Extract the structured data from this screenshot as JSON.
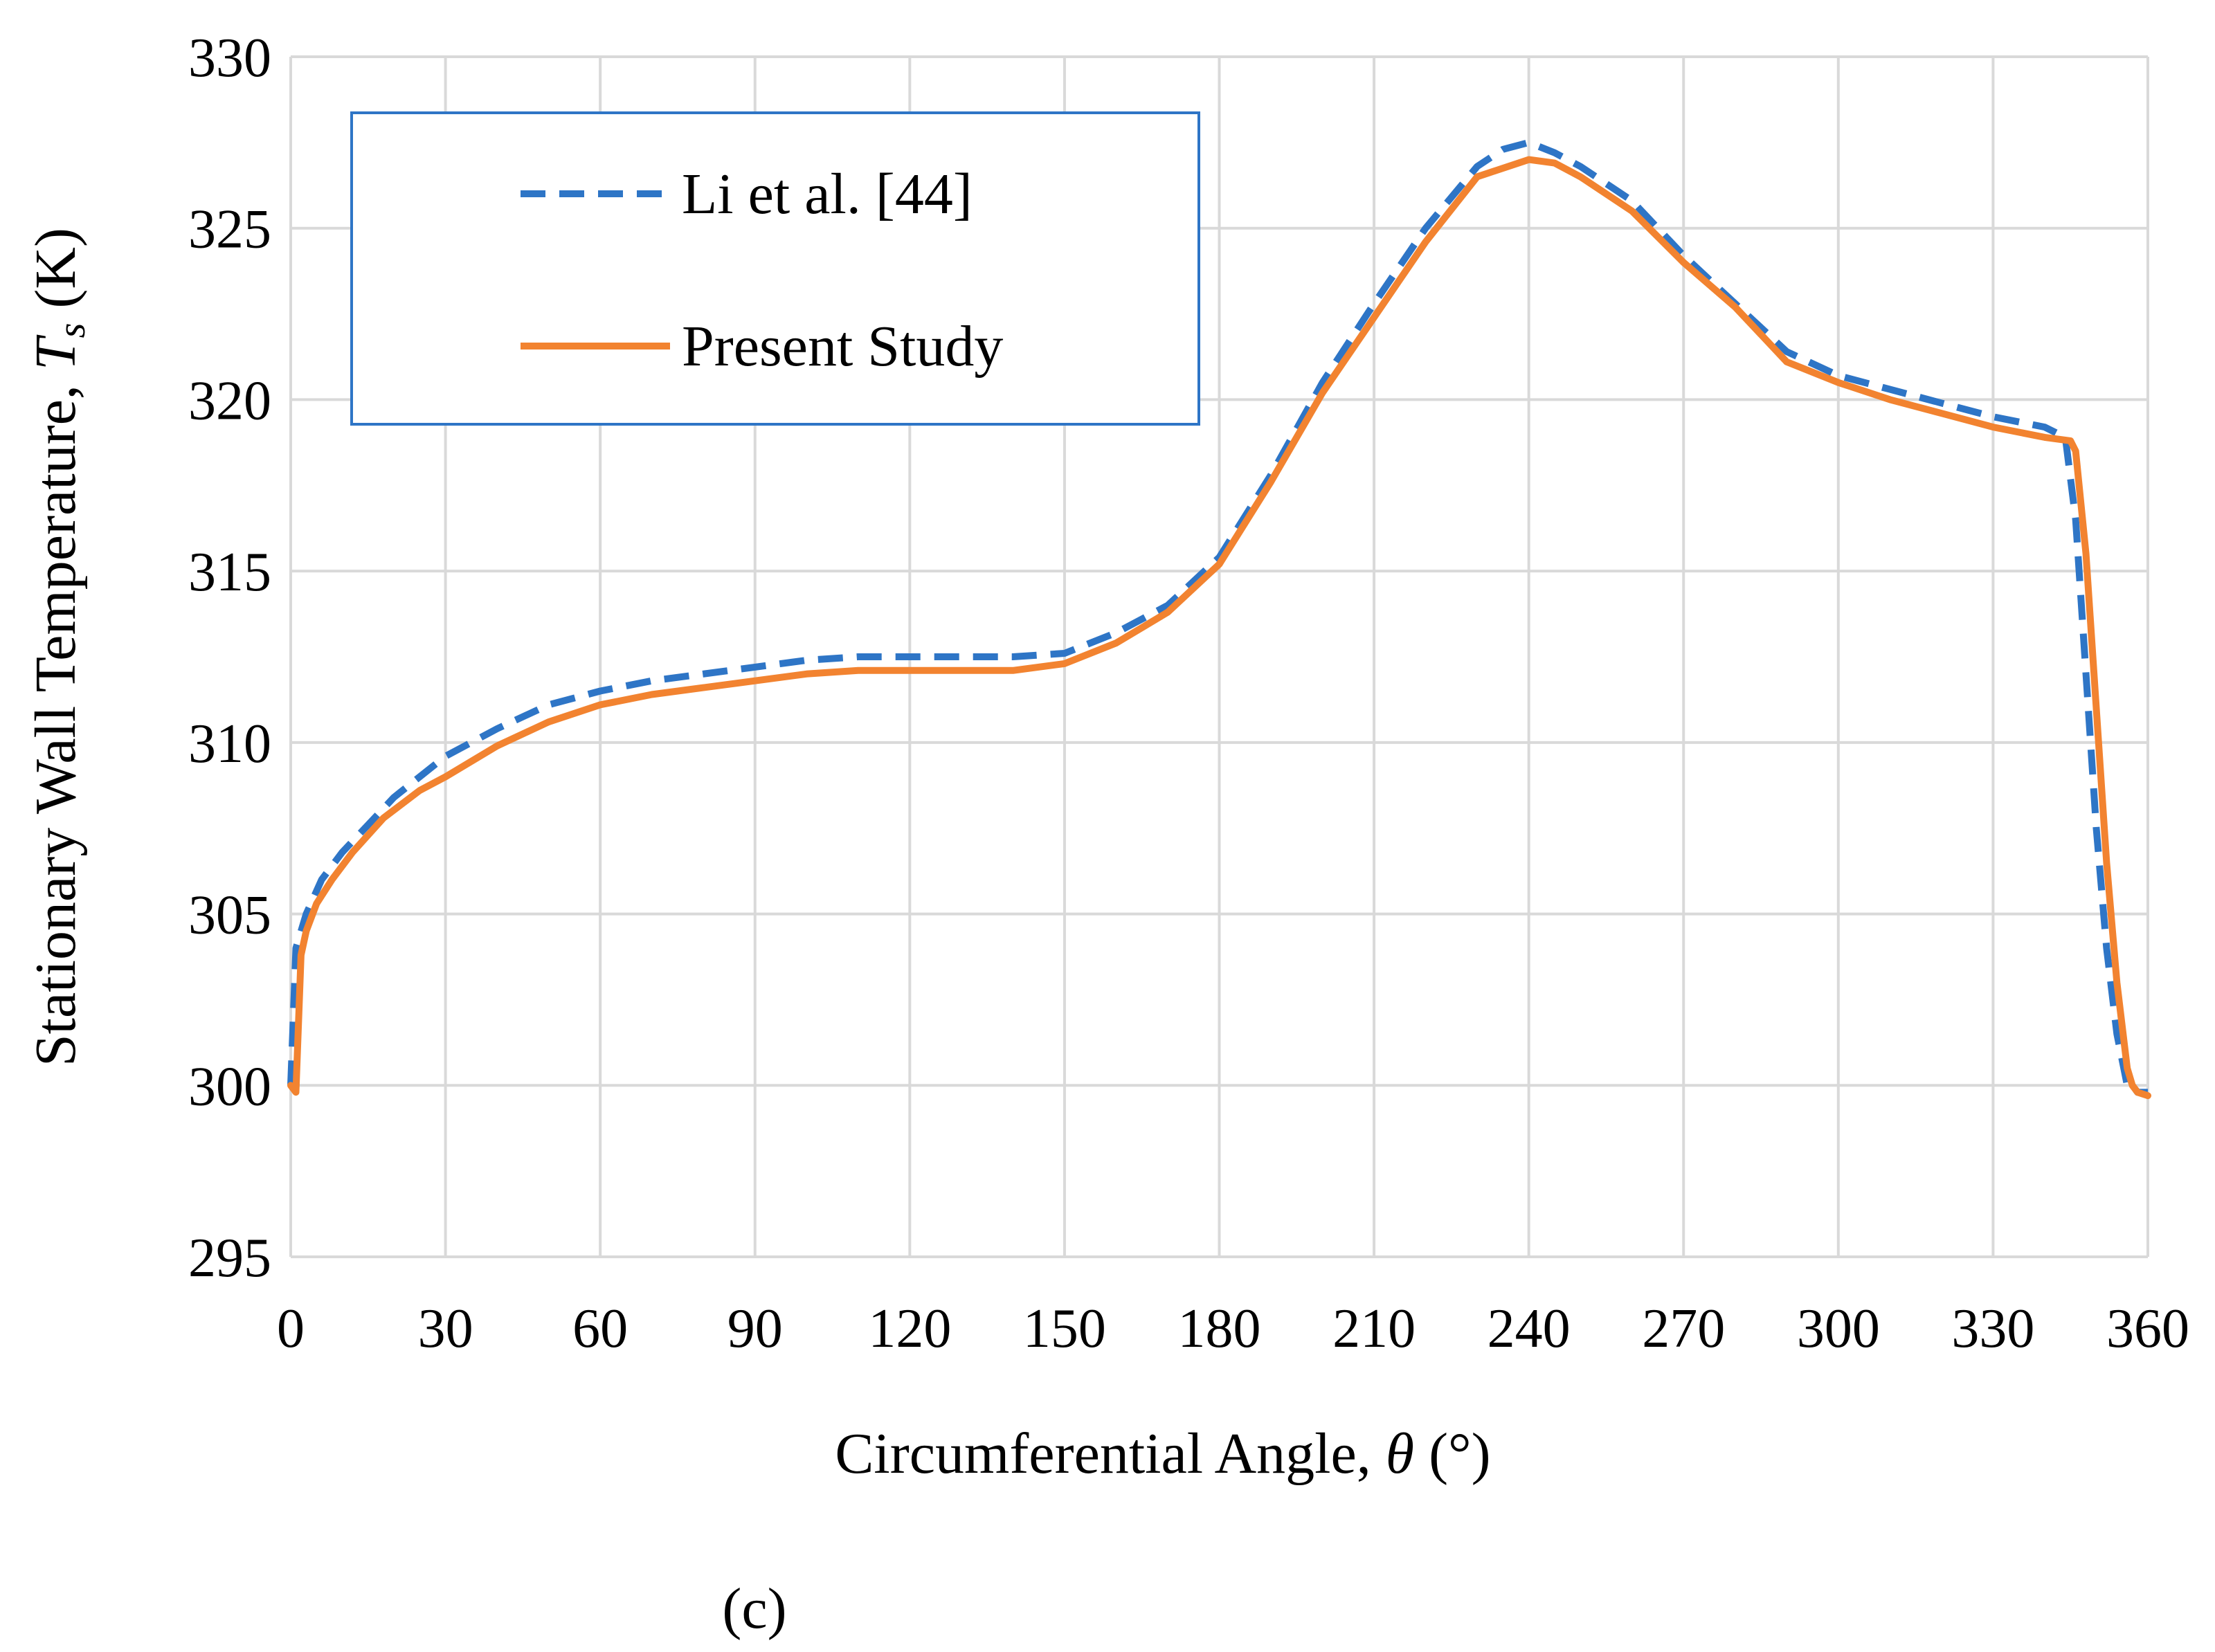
{
  "chart_data": {
    "type": "line",
    "xlabel": "Circumferential Angle, θ (°)",
    "xlabel_parts": [
      "Circumferential Angle, ",
      "θ",
      " (°)"
    ],
    "ylabel": "Stationary Wall Temperature, Ts (K)",
    "ylabel_parts": [
      "Stationary Wall Temperature, ",
      "T",
      "s",
      " (K)"
    ],
    "panel_label": "(c)",
    "xlim": [
      0,
      360
    ],
    "ylim": [
      295,
      330
    ],
    "xticks": [
      0,
      30,
      60,
      90,
      120,
      150,
      180,
      210,
      240,
      270,
      300,
      330,
      360
    ],
    "yticks": [
      295,
      300,
      305,
      310,
      315,
      320,
      325,
      330
    ],
    "grid": true,
    "legend_position": "top-left",
    "series": [
      {
        "name": "Li et al. [44]",
        "color": "#2E75C6",
        "style": "dashed",
        "x": [
          0,
          1,
          3,
          6,
          10,
          15,
          20,
          30,
          40,
          50,
          60,
          70,
          80,
          90,
          100,
          110,
          120,
          130,
          140,
          150,
          160,
          170,
          180,
          190,
          200,
          210,
          220,
          230,
          235,
          240,
          245,
          250,
          260,
          270,
          280,
          290,
          300,
          310,
          320,
          330,
          340,
          344,
          346,
          348,
          350,
          352,
          354,
          356,
          357,
          358,
          360
        ],
        "y": [
          300,
          304,
          305,
          306,
          306.8,
          307.6,
          308.4,
          309.6,
          310.4,
          311.1,
          311.5,
          311.8,
          312.0,
          312.2,
          312.4,
          312.5,
          312.5,
          312.5,
          312.5,
          312.6,
          313.2,
          314.0,
          315.4,
          317.8,
          320.5,
          322.8,
          325.0,
          326.8,
          327.3,
          327.5,
          327.2,
          326.8,
          325.8,
          324.2,
          322.8,
          321.4,
          320.7,
          320.3,
          319.9,
          319.5,
          319.2,
          318.9,
          316.5,
          312,
          307.5,
          304,
          301.5,
          300,
          300,
          299.8,
          299.8
        ]
      },
      {
        "name": "Present Study",
        "color": "#F28330",
        "style": "solid",
        "x": [
          0,
          1,
          2,
          3,
          5,
          8,
          12,
          18,
          25,
          30,
          40,
          50,
          60,
          70,
          80,
          90,
          100,
          110,
          120,
          130,
          140,
          150,
          160,
          170,
          180,
          190,
          200,
          210,
          220,
          230,
          240,
          245,
          250,
          260,
          270,
          280,
          290,
          300,
          310,
          320,
          330,
          340,
          345,
          346,
          348,
          350,
          352,
          354,
          356,
          357,
          358,
          360
        ],
        "y": [
          300,
          299.8,
          303.8,
          304.5,
          305.3,
          306.0,
          306.8,
          307.8,
          308.6,
          309.0,
          309.9,
          310.6,
          311.1,
          311.4,
          311.6,
          311.8,
          312.0,
          312.1,
          312.1,
          312.1,
          312.1,
          312.3,
          312.9,
          313.8,
          315.2,
          317.6,
          320.2,
          322.4,
          324.6,
          326.5,
          327.0,
          326.9,
          326.5,
          325.5,
          324.0,
          322.7,
          321.1,
          320.5,
          320.0,
          319.6,
          319.2,
          318.9,
          318.8,
          318.5,
          315.5,
          311.0,
          306.5,
          303.0,
          300.5,
          300.0,
          299.8,
          299.7
        ]
      }
    ]
  }
}
